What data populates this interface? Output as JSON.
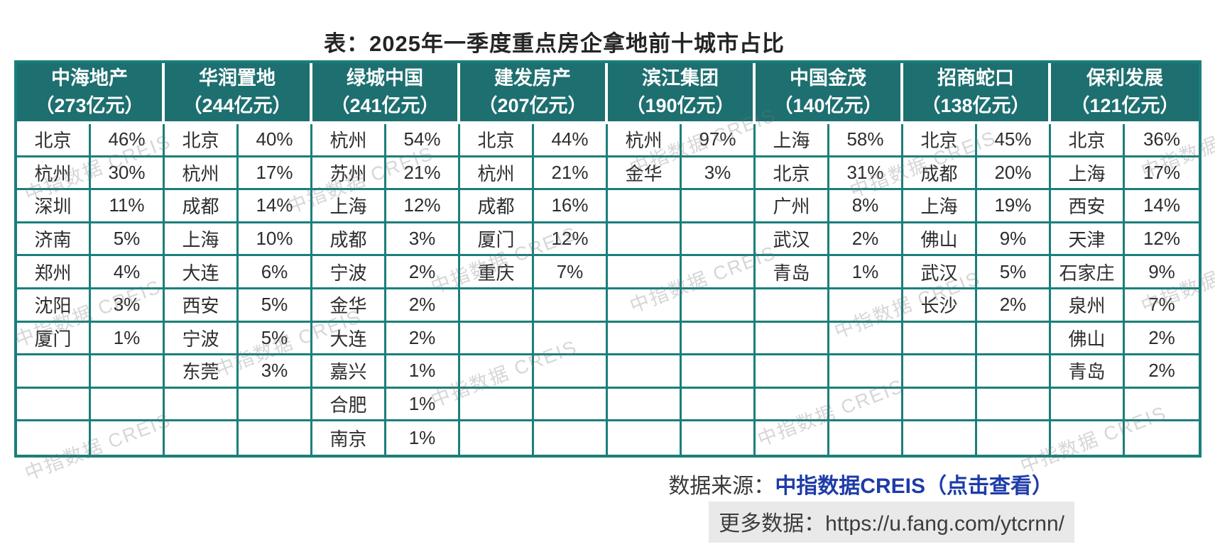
{
  "title": "表：2025年一季度重点房企拿地前十城市占比",
  "watermark_text": "中指数据 CREIS",
  "colors": {
    "header_bg": "#1e6f70",
    "grid_border": "#1a7f7b",
    "link_blue": "#1e3ca8"
  },
  "chart_data": {
    "type": "table",
    "title": "表：2025年一季度重点房企拿地前十城市占比",
    "row_count": 10,
    "unit": "亿元",
    "companies": [
      {
        "name": "中海地产",
        "amount": "（273亿元）",
        "amount_value": 273,
        "rows": [
          {
            "city": "北京",
            "pct": "46%"
          },
          {
            "city": "杭州",
            "pct": "30%"
          },
          {
            "city": "深圳",
            "pct": "11%"
          },
          {
            "city": "济南",
            "pct": "5%"
          },
          {
            "city": "郑州",
            "pct": "4%"
          },
          {
            "city": "沈阳",
            "pct": "3%"
          },
          {
            "city": "厦门",
            "pct": "1%"
          }
        ]
      },
      {
        "name": "华润置地",
        "amount": "（244亿元）",
        "amount_value": 244,
        "rows": [
          {
            "city": "北京",
            "pct": "40%"
          },
          {
            "city": "杭州",
            "pct": "17%"
          },
          {
            "city": "成都",
            "pct": "14%"
          },
          {
            "city": "上海",
            "pct": "10%"
          },
          {
            "city": "大连",
            "pct": "6%"
          },
          {
            "city": "西安",
            "pct": "5%"
          },
          {
            "city": "宁波",
            "pct": "5%"
          },
          {
            "city": "东莞",
            "pct": "3%"
          }
        ]
      },
      {
        "name": "绿城中国",
        "amount": "（241亿元）",
        "amount_value": 241,
        "rows": [
          {
            "city": "杭州",
            "pct": "54%"
          },
          {
            "city": "苏州",
            "pct": "21%"
          },
          {
            "city": "上海",
            "pct": "12%"
          },
          {
            "city": "成都",
            "pct": "3%"
          },
          {
            "city": "宁波",
            "pct": "2%"
          },
          {
            "city": "金华",
            "pct": "2%"
          },
          {
            "city": "大连",
            "pct": "2%"
          },
          {
            "city": "嘉兴",
            "pct": "1%"
          },
          {
            "city": "合肥",
            "pct": "1%"
          },
          {
            "city": "南京",
            "pct": "1%"
          }
        ]
      },
      {
        "name": "建发房产",
        "amount": "（207亿元）",
        "amount_value": 207,
        "rows": [
          {
            "city": "北京",
            "pct": "44%"
          },
          {
            "city": "杭州",
            "pct": "21%"
          },
          {
            "city": "成都",
            "pct": "16%"
          },
          {
            "city": "厦门",
            "pct": "12%"
          },
          {
            "city": "重庆",
            "pct": "7%"
          }
        ]
      },
      {
        "name": "滨江集团",
        "amount": "（190亿元）",
        "amount_value": 190,
        "rows": [
          {
            "city": "杭州",
            "pct": "97%"
          },
          {
            "city": "金华",
            "pct": "3%"
          }
        ]
      },
      {
        "name": "中国金茂",
        "amount": "（140亿元）",
        "amount_value": 140,
        "rows": [
          {
            "city": "上海",
            "pct": "58%"
          },
          {
            "city": "北京",
            "pct": "31%"
          },
          {
            "city": "广州",
            "pct": "8%"
          },
          {
            "city": "武汉",
            "pct": "2%"
          },
          {
            "city": "青岛",
            "pct": "1%"
          }
        ]
      },
      {
        "name": "招商蛇口",
        "amount": "（138亿元）",
        "amount_value": 138,
        "rows": [
          {
            "city": "北京",
            "pct": "45%"
          },
          {
            "city": "成都",
            "pct": "20%"
          },
          {
            "city": "上海",
            "pct": "19%"
          },
          {
            "city": "佛山",
            "pct": "9%"
          },
          {
            "city": "武汉",
            "pct": "5%"
          },
          {
            "city": "长沙",
            "pct": "2%"
          }
        ]
      },
      {
        "name": "保利发展",
        "amount": "（121亿元）",
        "amount_value": 121,
        "rows": [
          {
            "city": "北京",
            "pct": "36%"
          },
          {
            "city": "上海",
            "pct": "17%"
          },
          {
            "city": "西安",
            "pct": "14%"
          },
          {
            "city": "天津",
            "pct": "12%"
          },
          {
            "city": "石家庄",
            "pct": "9%"
          },
          {
            "city": "泉州",
            "pct": "7%"
          },
          {
            "city": "佛山",
            "pct": "2%"
          },
          {
            "city": "青岛",
            "pct": "2%"
          }
        ]
      }
    ]
  },
  "footer": {
    "source_label": "数据来源：",
    "source_link": "中指数据CREIS（点击查看）",
    "more_label": "更多数据：",
    "more_url": "https://u.fang.com/ytcrnn/"
  }
}
